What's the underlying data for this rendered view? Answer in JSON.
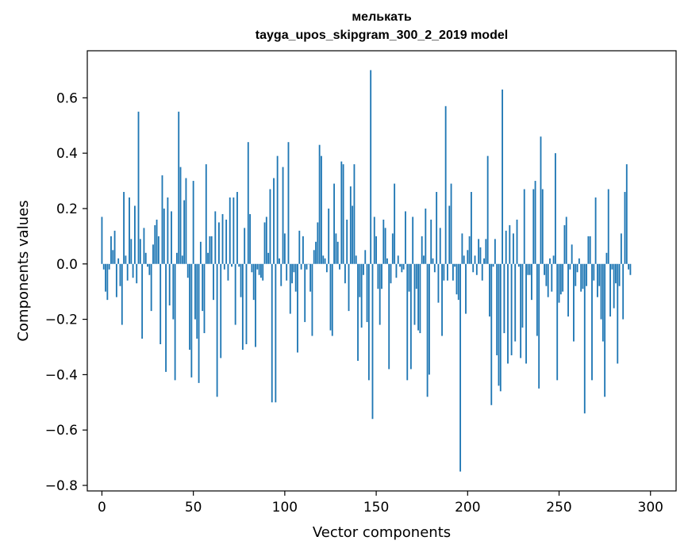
{
  "chart_data": {
    "type": "bar",
    "title": "мелькать",
    "subtitle": "tayga_upos_skipgram_300_2_2019 model",
    "xlabel": "Vector components",
    "ylabel": "Components values",
    "xlim": [
      -8,
      314
    ],
    "ylim": [
      -0.82,
      0.77
    ],
    "x_ticks": [
      0,
      50,
      100,
      150,
      200,
      250,
      300
    ],
    "x_tick_labels": [
      "0",
      "50",
      "100",
      "150",
      "200",
      "250",
      "300"
    ],
    "y_ticks": [
      -0.8,
      -0.6,
      -0.4,
      -0.2,
      0.0,
      0.2,
      0.4,
      0.6
    ],
    "y_tick_labels": [
      "−0.8",
      "−0.6",
      "−0.4",
      "−0.2",
      "0.0",
      "0.2",
      "0.4",
      "0.6"
    ],
    "bar_color": "#1f77b4",
    "grid": false,
    "values": [
      0.17,
      -0.02,
      -0.1,
      -0.13,
      -0.02,
      0.1,
      0.05,
      0.12,
      -0.12,
      0.02,
      -0.08,
      -0.22,
      0.26,
      0.03,
      -0.06,
      0.24,
      0.09,
      -0.05,
      0.21,
      -0.07,
      0.55,
      0.09,
      -0.27,
      0.13,
      0.04,
      -0.01,
      -0.04,
      -0.17,
      0.07,
      0.14,
      0.16,
      0.1,
      -0.29,
      0.32,
      0.2,
      -0.39,
      0.24,
      -0.15,
      0.19,
      -0.2,
      -0.42,
      0.04,
      0.55,
      0.35,
      0.03,
      0.23,
      0.31,
      -0.05,
      -0.31,
      -0.41,
      0.3,
      -0.2,
      -0.27,
      -0.43,
      0.08,
      -0.17,
      -0.25,
      0.36,
      0.04,
      0.1,
      0.1,
      -0.13,
      0.19,
      -0.48,
      0.15,
      -0.34,
      0.18,
      -0.02,
      0.16,
      -0.06,
      0.24,
      -0.01,
      0.24,
      -0.22,
      0.26,
      -0.01,
      -0.12,
      -0.31,
      0.13,
      -0.29,
      0.44,
      0.18,
      -0.03,
      -0.13,
      -0.3,
      -0.02,
      -0.04,
      -0.05,
      -0.06,
      0.15,
      0.17,
      0.04,
      0.27,
      -0.5,
      0.31,
      -0.5,
      0.39,
      0.02,
      -0.08,
      0.35,
      0.11,
      -0.06,
      0.44,
      -0.18,
      -0.07,
      -0.03,
      -0.1,
      -0.32,
      0.12,
      -0.02,
      0.1,
      -0.21,
      -0.02,
      0.0,
      -0.1,
      -0.26,
      0.05,
      0.08,
      0.15,
      0.43,
      0.39,
      0.03,
      0.02,
      -0.03,
      0.2,
      -0.24,
      -0.26,
      0.29,
      0.11,
      0.08,
      -0.02,
      0.37,
      0.36,
      -0.07,
      0.16,
      -0.17,
      0.28,
      0.21,
      0.36,
      0.03,
      -0.35,
      -0.12,
      -0.23,
      -0.04,
      0.05,
      -0.21,
      -0.42,
      0.7,
      -0.56,
      0.17,
      0.1,
      -0.09,
      -0.22,
      -0.09,
      0.16,
      0.13,
      0.02,
      -0.38,
      -0.07,
      0.11,
      0.29,
      -0.05,
      0.03,
      -0.01,
      -0.03,
      -0.02,
      0.19,
      -0.42,
      -0.1,
      -0.38,
      0.17,
      -0.22,
      -0.09,
      -0.24,
      -0.25,
      0.1,
      0.03,
      0.2,
      -0.48,
      -0.4,
      0.16,
      0.02,
      -0.03,
      0.26,
      -0.14,
      0.13,
      -0.26,
      -0.06,
      0.57,
      -0.06,
      0.21,
      0.29,
      -0.06,
      -0.01,
      -0.11,
      -0.13,
      -0.75,
      0.11,
      0.03,
      -0.18,
      0.05,
      0.1,
      0.26,
      -0.03,
      0.03,
      -0.04,
      0.09,
      0.06,
      -0.06,
      0.02,
      0.09,
      0.39,
      -0.19,
      -0.51,
      -0.01,
      0.09,
      -0.33,
      -0.44,
      -0.46,
      0.63,
      -0.25,
      0.12,
      -0.36,
      0.14,
      -0.33,
      0.11,
      -0.28,
      0.16,
      -0.01,
      -0.34,
      -0.23,
      0.27,
      -0.36,
      -0.04,
      -0.04,
      -0.13,
      0.27,
      0.3,
      -0.26,
      -0.45,
      0.46,
      0.27,
      -0.04,
      -0.08,
      -0.12,
      0.02,
      -0.1,
      0.03,
      0.4,
      -0.42,
      -0.14,
      -0.11,
      -0.1,
      0.14,
      0.17,
      -0.19,
      -0.02,
      0.07,
      -0.28,
      -0.08,
      -0.03,
      0.02,
      -0.1,
      -0.09,
      -0.54,
      -0.08,
      0.1,
      0.1,
      -0.42,
      -0.06,
      0.24,
      -0.12,
      -0.08,
      -0.2,
      -0.28,
      -0.48,
      0.04,
      0.27,
      -0.19,
      -0.02,
      -0.16,
      -0.07,
      -0.36,
      -0.08,
      0.11,
      -0.2,
      0.26,
      0.36,
      -0.02,
      -0.04
    ]
  }
}
